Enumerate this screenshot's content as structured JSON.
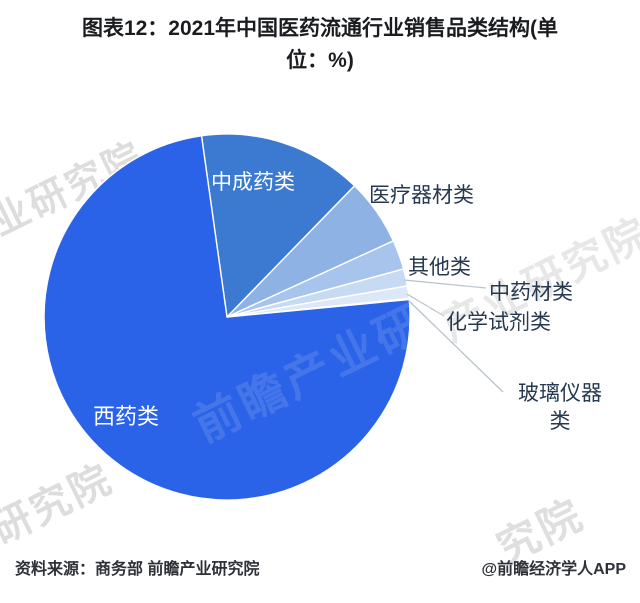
{
  "title_lines": [
    "图表12：2021年中国医药流通行业销售品类结构(单",
    "位：%)"
  ],
  "chart_data": {
    "type": "pie",
    "title": "2021年中国医药流通行业销售品类结构",
    "unit": "%",
    "rotation_deg": -8,
    "values_estimated_from_angles": true,
    "slices": [
      {
        "key": "chinese-patent-medicine",
        "label": "中成药类",
        "value": 14.5,
        "color": "#3C7AD1"
      },
      {
        "key": "medical-devices",
        "label": "医疗器材类",
        "value": 5.9,
        "color": "#8FB2E5"
      },
      {
        "key": "others",
        "label": "其他类",
        "value": 2.6,
        "color": "#A7C4ED"
      },
      {
        "key": "herbal-materials",
        "label": "中药材类",
        "value": 1.5,
        "color": "#C6DAF4"
      },
      {
        "key": "chemical-reagents",
        "label": "化学试剂类",
        "value": 1.1,
        "color": "#DCE8F8"
      },
      {
        "key": "glass-instruments",
        "label": "玻璃仪器类",
        "value": 0.1,
        "color": "#EEF3FB"
      },
      {
        "key": "western-medicine",
        "label": "西药类",
        "value": 74.3,
        "color": "#2B63E8"
      }
    ]
  },
  "footer": {
    "source": "资料来源：商务部 前瞻产业研究院",
    "credit": "@前瞻经济学人APP"
  },
  "watermarks": {
    "top_left": "业研究院",
    "right": "产业研究院",
    "bottom_left": "研究院",
    "bottom_right": "究院",
    "on_pie": "前瞻产业研究院"
  }
}
